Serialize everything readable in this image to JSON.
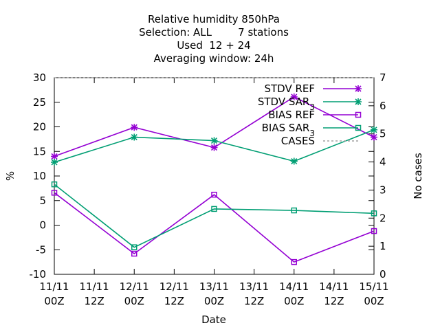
{
  "chart_data": {
    "type": "line",
    "title_lines": [
      "Relative humidity 850hPa",
      "Selection: ALL        7 stations",
      "Used  12 + 24",
      "Averaging window: 24h"
    ],
    "xlabel": "Date",
    "ylabel": "%",
    "y2label": "No cases",
    "x_ticks": [
      {
        "day": "11/11",
        "hour": "00Z"
      },
      {
        "day": "11/11",
        "hour": "12Z"
      },
      {
        "day": "12/11",
        "hour": "00Z"
      },
      {
        "day": "12/11",
        "hour": "12Z"
      },
      {
        "day": "13/11",
        "hour": "00Z"
      },
      {
        "day": "13/11",
        "hour": "12Z"
      },
      {
        "day": "14/11",
        "hour": "00Z"
      },
      {
        "day": "14/11",
        "hour": "12Z"
      },
      {
        "day": "15/11",
        "hour": "00Z"
      }
    ],
    "x": [
      "11/11 00Z",
      "12/11 00Z",
      "13/11 00Z",
      "14/11 00Z",
      "15/11 00Z"
    ],
    "ylim": [
      -10,
      30
    ],
    "y_ticks": [
      "-10",
      "-5",
      "0",
      "5",
      "10",
      "15",
      "20",
      "25",
      "30"
    ],
    "y2lim": [
      0,
      7
    ],
    "y2_ticks": [
      "0",
      "1",
      "2",
      "3",
      "4",
      "5",
      "6",
      "7"
    ],
    "grid": false,
    "legend_position": "top-right",
    "series": [
      {
        "name": "STDV REF",
        "axis": "y1",
        "color": "#9400d3",
        "marker": "star",
        "values": [
          14.0,
          19.9,
          15.8,
          26.1,
          17.9
        ]
      },
      {
        "name": "STDV SAR_3",
        "axis": "y1",
        "color": "#009e73",
        "marker": "star",
        "values": [
          12.8,
          17.9,
          17.2,
          13.0,
          19.4
        ]
      },
      {
        "name": "BIAS REF",
        "axis": "y1",
        "color": "#9400d3",
        "marker": "box",
        "values": [
          6.6,
          -5.8,
          6.2,
          -7.5,
          -1.2
        ]
      },
      {
        "name": "BIAS SAR_3",
        "axis": "y1",
        "color": "#009e73",
        "marker": "box",
        "values": [
          8.3,
          -4.5,
          3.3,
          3.0,
          2.4
        ]
      },
      {
        "name": "CASES",
        "axis": "y2",
        "color": "#a0a0a0",
        "marker": "none",
        "dashed": true,
        "values": [
          7,
          7,
          7,
          7,
          7
        ]
      }
    ]
  }
}
